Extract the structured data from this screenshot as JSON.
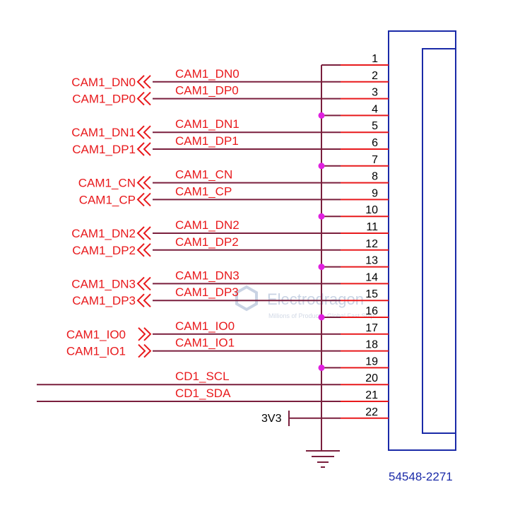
{
  "connector": {
    "part_number": "54548-2271",
    "pins": [
      {
        "num": "1",
        "net": ""
      },
      {
        "num": "2",
        "net": "CAM1_DN0"
      },
      {
        "num": "3",
        "net": "CAM1_DP0"
      },
      {
        "num": "4",
        "net": ""
      },
      {
        "num": "5",
        "net": "CAM1_DN1"
      },
      {
        "num": "6",
        "net": "CAM1_DP1"
      },
      {
        "num": "7",
        "net": ""
      },
      {
        "num": "8",
        "net": "CAM1_CN"
      },
      {
        "num": "9",
        "net": "CAM1_CP"
      },
      {
        "num": "10",
        "net": ""
      },
      {
        "num": "11",
        "net": "CAM1_DN2"
      },
      {
        "num": "12",
        "net": "CAM1_DP2"
      },
      {
        "num": "13",
        "net": ""
      },
      {
        "num": "14",
        "net": "CAM1_DN3"
      },
      {
        "num": "15",
        "net": "CAM1_DP3"
      },
      {
        "num": "16",
        "net": ""
      },
      {
        "num": "17",
        "net": "CAM1_IO0"
      },
      {
        "num": "18",
        "net": "CAM1_IO1"
      },
      {
        "num": "19",
        "net": ""
      },
      {
        "num": "20",
        "net": "CD1_SCL"
      },
      {
        "num": "21",
        "net": "CD1_SDA"
      },
      {
        "num": "22",
        "net": ""
      }
    ]
  },
  "ports": [
    {
      "label": "CAM1_DN0",
      "pin": "2"
    },
    {
      "label": "CAM1_DP0",
      "pin": "3"
    },
    {
      "label": "CAM1_DN1",
      "pin": "5"
    },
    {
      "label": "CAM1_DP1",
      "pin": "6"
    },
    {
      "label": "CAM1_CN",
      "pin": "8"
    },
    {
      "label": "CAM1_CP",
      "pin": "9"
    },
    {
      "label": "CAM1_DN2",
      "pin": "11"
    },
    {
      "label": "CAM1_DP2",
      "pin": "12"
    },
    {
      "label": "CAM1_DN3",
      "pin": "14"
    },
    {
      "label": "CAM1_DP3",
      "pin": "15"
    },
    {
      "label": "CAM1_IO0",
      "pin": "17"
    },
    {
      "label": "CAM1_IO1",
      "pin": "18"
    }
  ],
  "power": {
    "label": "3V3",
    "pin": "22"
  },
  "ground_junction_pins": [
    "4",
    "7",
    "10",
    "13",
    "16",
    "19"
  ],
  "watermark": {
    "brand": "Electrodragon",
    "tagline": "Millions of Products, Global Fast Ship"
  },
  "colors": {
    "wire": "#7a1f3d",
    "pin_line": "#e8191c",
    "label": "#e8191c",
    "junction": "#e020e0",
    "body": "#1a2aa8"
  }
}
